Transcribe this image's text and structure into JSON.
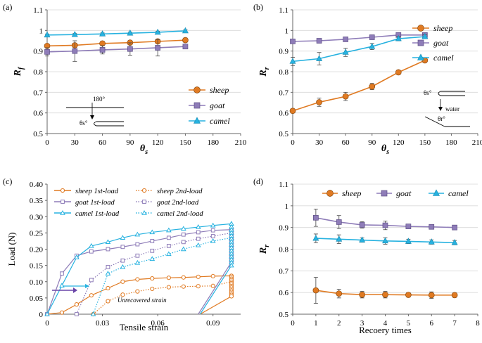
{
  "colors": {
    "sheep": "#E07A22",
    "goat": "#8E7CB8",
    "camel": "#27B2E0",
    "arrow": "#6A45A8",
    "axis": "#666666"
  },
  "chart_data": [
    {
      "panel": "(a)",
      "type": "line",
      "xlabel": "θs",
      "ylabel": "Rf",
      "xlim": [
        0,
        210
      ],
      "ylim": [
        0.5,
        1.1
      ],
      "xticks": [
        "0",
        "30",
        "60",
        "90",
        "120",
        "150",
        "180",
        "210"
      ],
      "yticks": [
        "0.5",
        "0.6",
        "0.7",
        "0.8",
        "0.9",
        "1",
        "1.1"
      ],
      "x": [
        0,
        30,
        60,
        90,
        120,
        150
      ],
      "series": [
        {
          "key": "sheep",
          "name": "sheep",
          "marker": "circle",
          "values": [
            0.925,
            0.928,
            0.937,
            0.941,
            0.947,
            0.953
          ],
          "err": [
            0.01,
            0.01,
            0.01,
            0.01,
            0.01,
            0.01
          ]
        },
        {
          "key": "goat",
          "name": "goat",
          "marker": "square",
          "values": [
            0.896,
            0.9,
            0.906,
            0.91,
            0.916,
            0.922
          ],
          "err": [
            0.02,
            0.05,
            0.02,
            0.03,
            0.04,
            0.01
          ]
        },
        {
          "key": "camel",
          "name": "camel",
          "marker": "triangle",
          "values": [
            0.978,
            0.98,
            0.983,
            0.987,
            0.991,
            0.998
          ],
          "err": [
            0.005,
            0.005,
            0.005,
            0.005,
            0.005,
            0.005
          ]
        }
      ],
      "legend_position": "bottom-right",
      "annotations": [
        "180°",
        "θs°"
      ]
    },
    {
      "panel": "(b)",
      "type": "line",
      "xlabel": "θs",
      "ylabel": "Rr",
      "xlim": [
        0,
        210
      ],
      "ylim": [
        0.5,
        1.1
      ],
      "xticks": [
        "0",
        "30",
        "60",
        "90",
        "120",
        "150",
        "180",
        "210"
      ],
      "yticks": [
        "0.5",
        "0.6",
        "0.7",
        "0.8",
        "0.9",
        "1",
        "1.1"
      ],
      "x": [
        0,
        30,
        60,
        90,
        120,
        150
      ],
      "series": [
        {
          "key": "sheep",
          "name": "sheep",
          "marker": "circle",
          "values": [
            0.61,
            0.652,
            0.68,
            0.728,
            0.797,
            0.855
          ],
          "err": [
            0.01,
            0.02,
            0.02,
            0.015,
            0.01,
            0.01
          ]
        },
        {
          "key": "goat",
          "name": "goat",
          "marker": "square",
          "values": [
            0.947,
            0.95,
            0.957,
            0.967,
            0.978,
            0.978
          ],
          "err": [
            0.005,
            0.01,
            0.01,
            0.005,
            0.005,
            0.01
          ]
        },
        {
          "key": "camel",
          "name": "camel",
          "marker": "triangle",
          "values": [
            0.85,
            0.863,
            0.894,
            0.922,
            0.96,
            0.97
          ],
          "err": [
            0.02,
            0.03,
            0.02,
            0.015,
            0.01,
            0.01
          ]
        }
      ],
      "legend_position": "top-right",
      "annotations": [
        "θs°",
        "water",
        "θr°"
      ]
    },
    {
      "panel": "(c)",
      "type": "line",
      "xlabel": "Tensile strain",
      "ylabel": "Load (N)",
      "xlim": [
        0,
        0.105
      ],
      "ylim": [
        0,
        0.4
      ],
      "xticks": [
        "0",
        "0.03",
        "0.06",
        "0.09"
      ],
      "yticks": [
        "0",
        "0.05",
        "0.10",
        "0.15",
        "0.20",
        "0.25",
        "0.30",
        "0.35",
        "0.40"
      ],
      "series": [
        {
          "key": "sheep",
          "name": "sheep 1st-load",
          "style": "solid",
          "marker": "circle-open",
          "x": [
            0,
            0.008,
            0.016,
            0.024,
            0.033,
            0.041,
            0.049,
            0.057,
            0.066,
            0.074,
            0.082,
            0.09,
            0.1,
            0.1,
            0.083
          ],
          "y": [
            0,
            0.005,
            0.03,
            0.058,
            0.08,
            0.1,
            0.107,
            0.11,
            0.112,
            0.113,
            0.115,
            0.117,
            0.118,
            0.055,
            0
          ]
        },
        {
          "key": "sheep",
          "name": "sheep 2nd-load",
          "style": "dotted",
          "marker": "circle-open",
          "x": [
            0.025,
            0.033,
            0.041,
            0.049,
            0.057,
            0.066,
            0.074,
            0.082,
            0.09,
            0.1
          ],
          "y": [
            0,
            0.04,
            0.06,
            0.07,
            0.078,
            0.083,
            0.085,
            0.086,
            0.087,
            0.1
          ]
        },
        {
          "key": "goat",
          "name": "goat 1st-load",
          "style": "solid",
          "marker": "square-open",
          "x": [
            0,
            0.008,
            0.016,
            0.024,
            0.033,
            0.041,
            0.049,
            0.057,
            0.066,
            0.074,
            0.082,
            0.09,
            0.1,
            0.1,
            0.082
          ],
          "y": [
            0,
            0.125,
            0.18,
            0.193,
            0.2,
            0.207,
            0.215,
            0.225,
            0.235,
            0.245,
            0.252,
            0.258,
            0.26,
            0.16,
            0
          ]
        },
        {
          "key": "goat",
          "name": "goat 2nd-load",
          "style": "dotted",
          "marker": "square-open",
          "x": [
            0.016,
            0.024,
            0.033,
            0.041,
            0.049,
            0.057,
            0.066,
            0.074,
            0.082,
            0.09,
            0.1
          ],
          "y": [
            0,
            0.105,
            0.145,
            0.165,
            0.18,
            0.195,
            0.21,
            0.222,
            0.232,
            0.24,
            0.25
          ]
        },
        {
          "key": "camel",
          "name": "camel 1st-load",
          "style": "solid",
          "marker": "triangle-open",
          "x": [
            0,
            0.008,
            0.016,
            0.024,
            0.033,
            0.041,
            0.049,
            0.057,
            0.066,
            0.074,
            0.082,
            0.09,
            0.1,
            0.1,
            0.083
          ],
          "y": [
            0,
            0.088,
            0.175,
            0.21,
            0.222,
            0.235,
            0.245,
            0.252,
            0.258,
            0.263,
            0.268,
            0.273,
            0.278,
            0.15,
            0
          ]
        },
        {
          "key": "camel",
          "name": "camel 2nd-load",
          "style": "dotted",
          "marker": "triangle-open",
          "x": [
            0.025,
            0.033,
            0.041,
            0.049,
            0.057,
            0.066,
            0.074,
            0.082,
            0.09,
            0.1
          ],
          "y": [
            0,
            0.125,
            0.145,
            0.158,
            0.17,
            0.185,
            0.2,
            0.212,
            0.225,
            0.235
          ]
        }
      ],
      "legend_position": "top-left",
      "annotations": [
        "Unrecovered strain"
      ]
    },
    {
      "panel": "(d)",
      "type": "line",
      "xlabel": "Recoery times",
      "ylabel": "Rr",
      "xlim": [
        0,
        8
      ],
      "ylim": [
        0.5,
        1.1
      ],
      "xticks": [
        "0",
        "1",
        "2",
        "3",
        "4",
        "5",
        "6",
        "7",
        "8"
      ],
      "yticks": [
        "0.5",
        "0.6",
        "0.7",
        "0.8",
        "0.9",
        "1",
        "1.1"
      ],
      "x": [
        1,
        2,
        3,
        4,
        5,
        6,
        7
      ],
      "series": [
        {
          "key": "sheep",
          "name": "sheep",
          "marker": "circle",
          "values": [
            0.61,
            0.595,
            0.59,
            0.59,
            0.589,
            0.588,
            0.588
          ],
          "err": [
            0.06,
            0.02,
            0.015,
            0.015,
            0.01,
            0.015,
            0.01
          ]
        },
        {
          "key": "goat",
          "name": "goat",
          "marker": "square",
          "values": [
            0.945,
            0.925,
            0.912,
            0.91,
            0.905,
            0.903,
            0.9
          ],
          "err": [
            0.04,
            0.03,
            0.015,
            0.02,
            0.01,
            0.01,
            0.01
          ]
        },
        {
          "key": "camel",
          "name": "camel",
          "marker": "triangle",
          "values": [
            0.85,
            0.846,
            0.842,
            0.838,
            0.836,
            0.833,
            0.83
          ],
          "err": [
            0.02,
            0.02,
            0.01,
            0.015,
            0.01,
            0.01,
            0.01
          ]
        }
      ],
      "legend_position": "top"
    }
  ]
}
